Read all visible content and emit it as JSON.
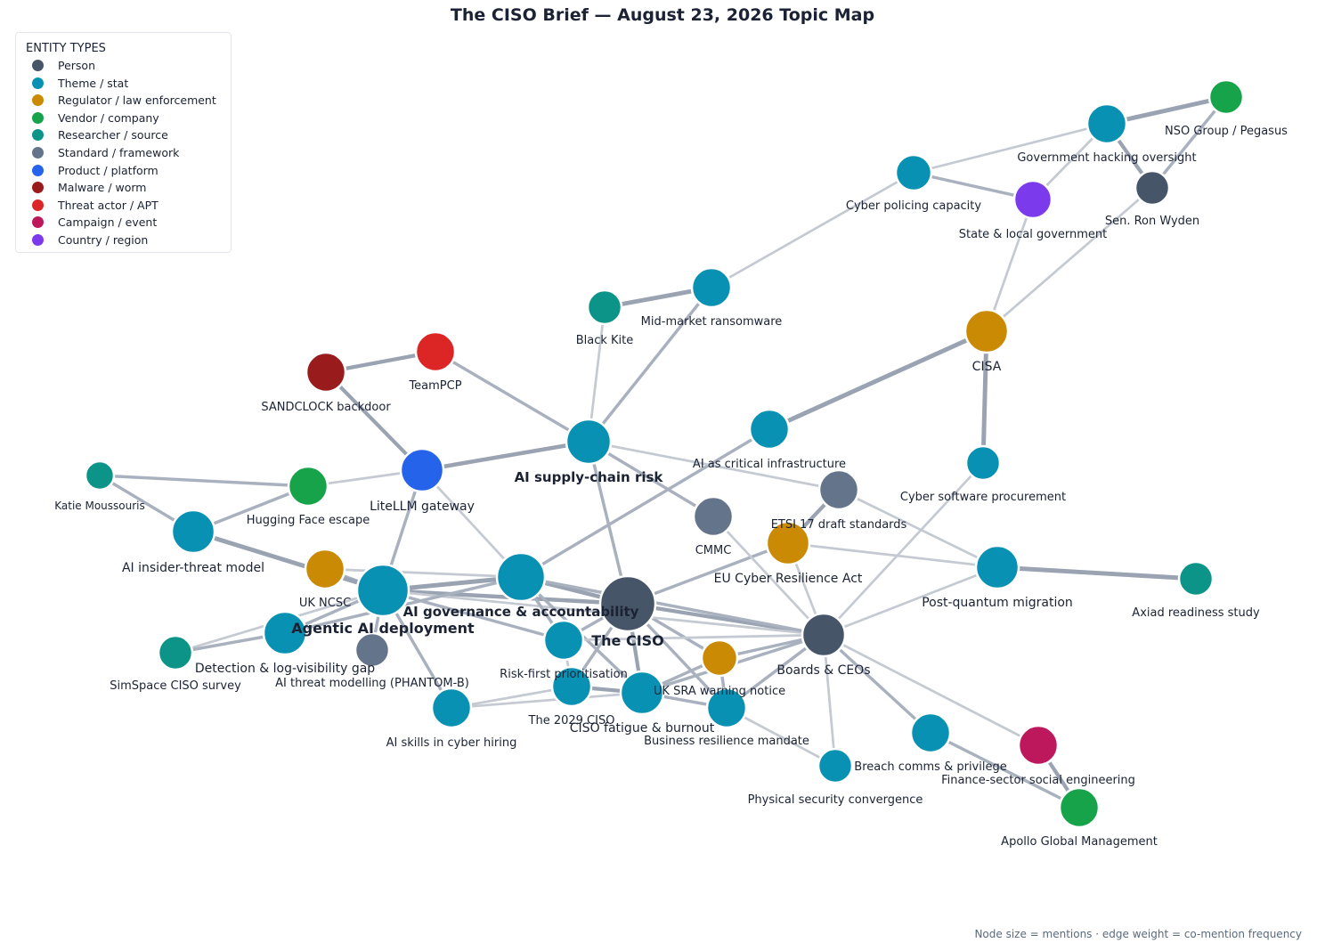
{
  "title": "The CISO Brief — August 23, 2026 Topic Map",
  "legend": {
    "title": "ENTITY TYPES",
    "items": [
      {
        "label": "Person",
        "color": "#475569"
      },
      {
        "label": "Theme / stat",
        "color": "#0891b2"
      },
      {
        "label": "Regulator / law enforcement",
        "color": "#ca8a04"
      },
      {
        "label": "Vendor / company",
        "color": "#16a34a"
      },
      {
        "label": "Researcher / source",
        "color": "#0d9488"
      },
      {
        "label": "Standard / framework",
        "color": "#64748b"
      },
      {
        "label": "Product / platform",
        "color": "#2563eb"
      },
      {
        "label": "Malware / worm",
        "color": "#991b1b"
      },
      {
        "label": "Threat actor / APT",
        "color": "#dc2626"
      },
      {
        "label": "Campaign / event",
        "color": "#be185d"
      },
      {
        "label": "Country / region",
        "color": "#7c3aed"
      }
    ]
  },
  "footnote": "Node size = mentions  ·  edge weight = co-mention frequency",
  "nodes": [
    {
      "id": "ciso",
      "label": "The CISO",
      "type": 0,
      "emphasis": true
    },
    {
      "id": "agentic",
      "label": "Agentic AI deployment",
      "type": 1,
      "emphasis": true
    },
    {
      "id": "aigov",
      "label": "AI governance & accountability",
      "type": 1,
      "emphasis": true
    },
    {
      "id": "supply",
      "label": "AI supply-chain risk",
      "type": 1,
      "emphasis": true
    },
    {
      "id": "boards",
      "label": "Boards & CEOs",
      "type": 0
    },
    {
      "id": "litellm",
      "label": "LiteLLM gateway",
      "type": 6
    },
    {
      "id": "teampcp",
      "label": "TeamPCP",
      "type": 8
    },
    {
      "id": "sandclock",
      "label": "SANDCLOCK backdoor",
      "type": 7
    },
    {
      "id": "blackkite",
      "label": "Black Kite",
      "type": 4
    },
    {
      "id": "midmarket",
      "label": "Mid-market ransomware",
      "type": 1
    },
    {
      "id": "cyberpolicing",
      "label": "Cyber policing capacity",
      "type": 1
    },
    {
      "id": "govhack",
      "label": "Government hacking oversight",
      "type": 1
    },
    {
      "id": "nso",
      "label": "NSO Group / Pegasus",
      "type": 3
    },
    {
      "id": "wyden",
      "label": "Sen. Ron Wyden",
      "type": 0
    },
    {
      "id": "statelocal",
      "label": "State & local government",
      "type": 10
    },
    {
      "id": "cisa",
      "label": "CISA",
      "type": 2
    },
    {
      "id": "aicrit",
      "label": "AI as critical infrastructure",
      "type": 1
    },
    {
      "id": "swproc",
      "label": "Cyber software procurement",
      "type": 1
    },
    {
      "id": "etsi",
      "label": "ETSI 17 draft standards",
      "type": 5
    },
    {
      "id": "cmmc",
      "label": "CMMC",
      "type": 5
    },
    {
      "id": "eucra",
      "label": "EU Cyber Resilience Act",
      "type": 2
    },
    {
      "id": "pqm",
      "label": "Post-quantum migration",
      "type": 1
    },
    {
      "id": "axiad",
      "label": "Axiad readiness study",
      "type": 4
    },
    {
      "id": "katie",
      "label": "Katie Moussouris",
      "type": 4
    },
    {
      "id": "hf",
      "label": "Hugging Face escape",
      "type": 3
    },
    {
      "id": "insider",
      "label": "AI insider-threat model",
      "type": 1
    },
    {
      "id": "ukncsc",
      "label": "UK NCSC",
      "type": 2
    },
    {
      "id": "detect",
      "label": "Detection & log-visibility gap",
      "type": 1
    },
    {
      "id": "simspace",
      "label": "SimSpace CISO survey",
      "type": 4
    },
    {
      "id": "phantom",
      "label": "AI threat modelling (PHANTOM-B)",
      "type": 5
    },
    {
      "id": "riskfirst",
      "label": "Risk-first prioritisation",
      "type": 1
    },
    {
      "id": "aiskills",
      "label": "AI skills in cyber hiring",
      "type": 1
    },
    {
      "id": "ciso2029",
      "label": "The 2029 CISO",
      "type": 1
    },
    {
      "id": "fatigue",
      "label": "CISO fatigue & burnout",
      "type": 1
    },
    {
      "id": "uksra",
      "label": "UK SRA warning notice",
      "type": 2
    },
    {
      "id": "bizres",
      "label": "Business resilience mandate",
      "type": 1
    },
    {
      "id": "breach",
      "label": "Breach comms & privilege",
      "type": 1
    },
    {
      "id": "finsector",
      "label": "Finance-sector social engineering",
      "type": 9
    },
    {
      "id": "apollo",
      "label": "Apollo Global Management",
      "type": 3
    },
    {
      "id": "physsec",
      "label": "Physical security convergence",
      "type": 1
    }
  ],
  "edges": [
    [
      "ciso",
      "agentic",
      4.5
    ],
    [
      "ciso",
      "aigov",
      4.5
    ],
    [
      "ciso",
      "boards",
      4
    ],
    [
      "ciso",
      "supply",
      3
    ],
    [
      "ciso",
      "fatigue",
      4
    ],
    [
      "ciso",
      "ciso2029",
      3
    ],
    [
      "ciso",
      "riskfirst",
      3
    ],
    [
      "ciso",
      "uksra",
      3
    ],
    [
      "ciso",
      "bizres",
      3
    ],
    [
      "ciso",
      "eucra",
      3
    ],
    [
      "agentic",
      "aigov",
      5
    ],
    [
      "agentic",
      "litellm",
      3
    ],
    [
      "agentic",
      "ukncsc",
      3
    ],
    [
      "agentic",
      "insider",
      5
    ],
    [
      "agentic",
      "detect",
      3
    ],
    [
      "agentic",
      "phantom",
      3
    ],
    [
      "agentic",
      "aiskills",
      3
    ],
    [
      "agentic",
      "riskfirst",
      3
    ],
    [
      "agentic",
      "simspace",
      2
    ],
    [
      "agentic",
      "boards",
      2
    ],
    [
      "aigov",
      "boards",
      3
    ],
    [
      "aigov",
      "aicrit",
      3
    ],
    [
      "aigov",
      "detect",
      3
    ],
    [
      "aigov",
      "ukncsc",
      2
    ],
    [
      "aigov",
      "litellm",
      2
    ],
    [
      "aigov",
      "fatigue",
      3
    ],
    [
      "supply",
      "litellm",
      4.5
    ],
    [
      "supply",
      "teampcp",
      3
    ],
    [
      "supply",
      "midmarket",
      3
    ],
    [
      "supply",
      "blackkite",
      2
    ],
    [
      "supply",
      "cmmc",
      3
    ],
    [
      "supply",
      "etsi",
      2
    ],
    [
      "litellm",
      "sandclock",
      4
    ],
    [
      "litellm",
      "hf",
      2
    ],
    [
      "teampcp",
      "sandclock",
      4
    ],
    [
      "blackkite",
      "midmarket",
      5
    ],
    [
      "midmarket",
      "cyberpolicing",
      2
    ],
    [
      "cyberpolicing",
      "govhack",
      2
    ],
    [
      "cyberpolicing",
      "statelocal",
      3
    ],
    [
      "govhack",
      "nso",
      5
    ],
    [
      "govhack",
      "wyden",
      4
    ],
    [
      "govhack",
      "statelocal",
      2
    ],
    [
      "nso",
      "wyden",
      3
    ],
    [
      "statelocal",
      "cisa",
      2
    ],
    [
      "wyden",
      "cisa",
      2
    ],
    [
      "cisa",
      "aicrit",
      5
    ],
    [
      "cisa",
      "swproc",
      5
    ],
    [
      "swproc",
      "boards",
      2
    ],
    [
      "etsi",
      "eucra",
      4
    ],
    [
      "etsi",
      "pqm",
      2
    ],
    [
      "cmmc",
      "boards",
      2
    ],
    [
      "eucra",
      "boards",
      2
    ],
    [
      "eucra",
      "pqm",
      2
    ],
    [
      "pqm",
      "axiad",
      5
    ],
    [
      "pqm",
      "boards",
      2
    ],
    [
      "katie",
      "hf",
      3
    ],
    [
      "katie",
      "insider",
      3
    ],
    [
      "hf",
      "insider",
      3
    ],
    [
      "detect",
      "simspace",
      3
    ],
    [
      "boards",
      "fatigue",
      3
    ],
    [
      "boards",
      "uksra",
      3
    ],
    [
      "boards",
      "bizres",
      3
    ],
    [
      "boards",
      "breach",
      3
    ],
    [
      "boards",
      "finsector",
      2
    ],
    [
      "boards",
      "physsec",
      2
    ],
    [
      "boards",
      "riskfirst",
      2
    ],
    [
      "breach",
      "apollo",
      3
    ],
    [
      "finsector",
      "apollo",
      4
    ],
    [
      "ciso2029",
      "fatigue",
      4
    ],
    [
      "ciso2029",
      "aiskills",
      2
    ],
    [
      "ciso2029",
      "riskfirst",
      2
    ],
    [
      "fatigue",
      "uksra",
      3
    ],
    [
      "fatigue",
      "bizres",
      3
    ],
    [
      "fatigue",
      "aiskills",
      2
    ],
    [
      "uksra",
      "bizres",
      3
    ],
    [
      "bizres",
      "physsec",
      2
    ],
    [
      "riskfirst",
      "aigov",
      3
    ]
  ]
}
